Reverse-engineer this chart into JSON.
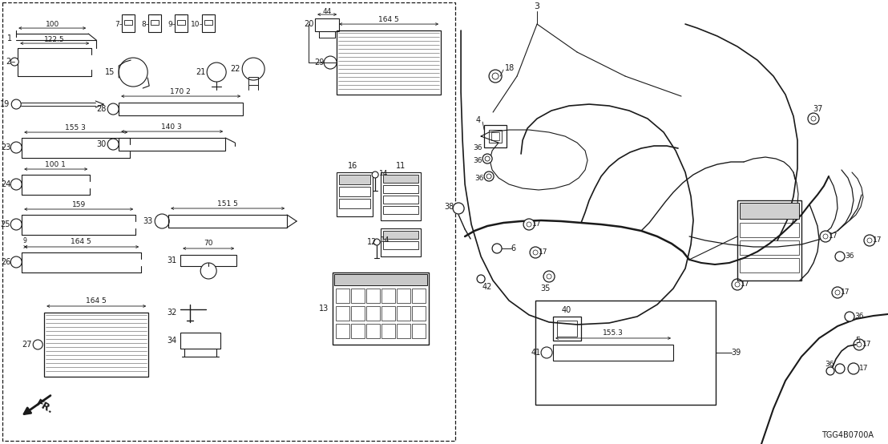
{
  "fig_width": 11.08,
  "fig_height": 5.54,
  "dpi": 100,
  "bg": "#ffffff",
  "lc": "#1a1a1a",
  "part_code": "TGG4B0700A"
}
